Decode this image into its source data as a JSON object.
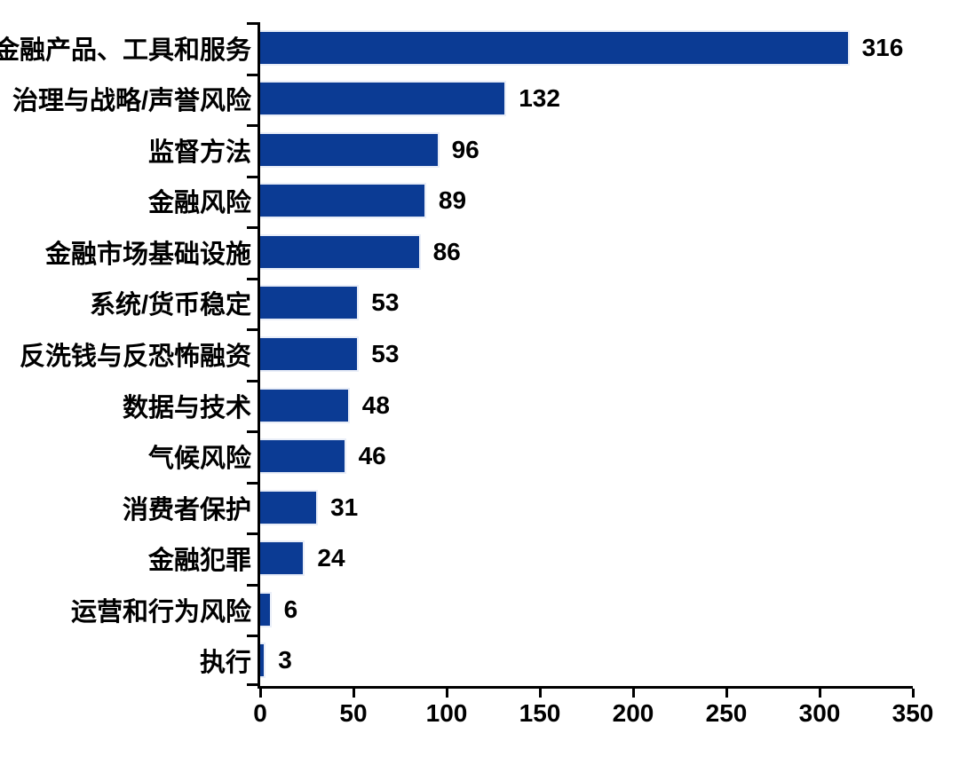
{
  "chart_data": {
    "type": "bar",
    "orientation": "horizontal",
    "title": "",
    "xlabel": "",
    "ylabel": "",
    "categories": [
      "金融产品、工具和服务",
      "治理与战略/声誉风险",
      "监督方法",
      "金融风险",
      "金融市场基础设施",
      "系统/货币稳定",
      "反洗钱与反恐怖融资",
      "数据与技术",
      "气候风险",
      "消费者保护",
      "金融犯罪",
      "运营和行为风险",
      "执行"
    ],
    "values": [
      316,
      132,
      96,
      89,
      86,
      53,
      53,
      48,
      46,
      31,
      24,
      6,
      3
    ],
    "value_labels_shown": true,
    "xlim": [
      0,
      350
    ],
    "x_ticks": [
      0,
      50,
      100,
      150,
      200,
      250,
      300,
      350
    ],
    "grid": false,
    "legend": "none",
    "colors": {
      "bar_fill": "#0b3b94",
      "bar_border": "#e9eef8",
      "axis": "#000000",
      "text": "#000000",
      "background": "#ffffff"
    }
  }
}
